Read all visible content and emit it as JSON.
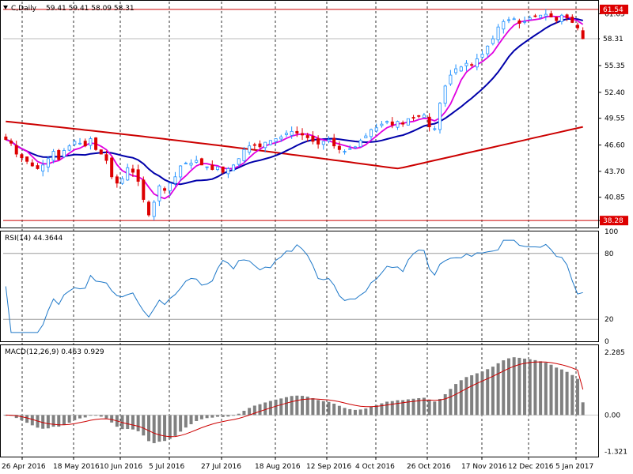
{
  "main_pane": {
    "symbol": "C,Daily",
    "ohlc_text": "59.41 59.41 58.09 58.31",
    "price_ticks": [
      "61.05",
      "58.31",
      "55.35",
      "52.40",
      "49.55",
      "46.60",
      "43.70",
      "40.85",
      "38.28"
    ],
    "resistance_label": "61.54",
    "support_label": "38.28",
    "last_price_label": "58.31",
    "colors": {
      "bull": "#1e90ff",
      "bear": "#dd0000",
      "ma_fast": "#e000e0",
      "ma_mid": "#0000aa",
      "ma_slow": "#cc0000",
      "level_line": "#cc0000"
    }
  },
  "rsi_pane": {
    "title": "RSI(14) 44.3644",
    "ticks": [
      "100",
      "80",
      "20",
      "0"
    ],
    "color": "#1e78c8"
  },
  "macd_pane": {
    "title": "MACD(12,26,9) 0.463 0.929",
    "ticks": [
      "2.285",
      "0.00",
      "-1.321"
    ],
    "hist_color": "#808080",
    "signal_color": "#cc0000"
  },
  "date_labels": [
    "26 Apr 2016",
    "18 May 2016",
    "10 Jun 2016",
    "5 Jul 2016",
    "27 Jul 2016",
    "18 Aug 2016",
    "12 Sep 2016",
    "4 Oct 2016",
    "26 Oct 2016",
    "17 Nov 2016",
    "12 Dec 2016",
    "5 Jan 2017"
  ],
  "chart_data": {
    "type": "line",
    "title": "C,Daily",
    "price_range": [
      38.28,
      61.54
    ],
    "levels": [
      61.54,
      38.28
    ],
    "close": [
      47.2,
      46.8,
      45.6,
      45.2,
      44.8,
      44.3,
      44.0,
      44.4,
      45.1,
      45.9,
      45.0,
      46.0,
      46.5,
      47.0,
      46.8,
      46.5,
      47.3,
      46.1,
      45.6,
      44.9,
      43.1,
      42.4,
      42.9,
      44.1,
      43.6,
      42.6,
      40.6,
      38.9,
      40.3,
      42.1,
      41.6,
      42.4,
      43.1,
      44.3,
      44.6,
      44.6,
      44.9,
      44.4,
      44.2,
      43.9,
      44.2,
      43.6,
      44.0,
      44.4,
      45.1,
      46.1,
      46.5,
      46.6,
      46.4,
      46.9,
      47.1,
      47.3,
      47.5,
      47.9,
      48.1,
      47.9,
      47.7,
      47.4,
      47.0,
      46.7,
      47.0,
      47.2,
      46.5,
      46.1,
      45.9,
      46.2,
      46.4,
      47.1,
      47.6,
      48.3,
      48.5,
      48.9,
      49.2,
      48.8,
      49.2,
      48.9,
      49.5,
      49.6,
      49.8,
      49.9,
      48.6,
      48.4,
      51.2,
      53.1,
      54.3,
      55.0,
      55.2,
      55.6,
      55.4,
      56.1,
      56.6,
      57.5,
      58.3,
      59.6,
      60.2,
      60.4,
      60.5,
      60.0,
      60.2,
      60.6,
      60.8,
      60.9,
      61.0,
      60.7,
      60.3,
      60.9,
      60.6,
      60.1,
      59.5,
      58.31
    ],
    "rsi_value": 44.3644,
    "rsi_levels": [
      80,
      20
    ],
    "rsi_range": [
      0,
      100
    ],
    "macd": {
      "fast": 12,
      "slow": 26,
      "signal": 9,
      "macd_value": 0.463,
      "signal_value": 0.929,
      "range": [
        -1.321,
        2.285
      ]
    },
    "x_labels": [
      "26 Apr 2016",
      "18 May 2016",
      "10 Jun 2016",
      "5 Jul 2016",
      "27 Jul 2016",
      "18 Aug 2016",
      "12 Sep 2016",
      "4 Oct 2016",
      "26 Oct 2016",
      "17 Nov 2016",
      "12 Dec 2016",
      "5 Jan 2017"
    ]
  }
}
